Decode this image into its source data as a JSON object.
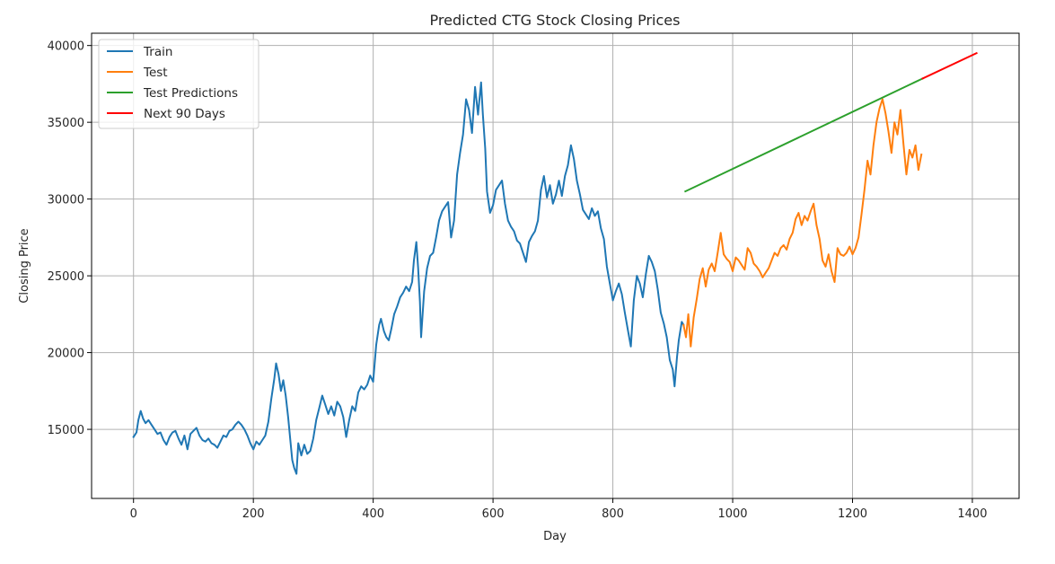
{
  "chart_data": {
    "type": "line",
    "title": "Predicted CTG Stock Closing Prices",
    "xlabel": "Day",
    "ylabel": "Closing Price",
    "xlim": [
      -70,
      1478
    ],
    "ylim": [
      10500,
      40800
    ],
    "xticks": [
      0,
      200,
      400,
      600,
      800,
      1000,
      1200,
      1400
    ],
    "xtick_labels": [
      "0",
      "200",
      "400",
      "600",
      "800",
      "1000",
      "1200",
      "1400"
    ],
    "yticks": [
      15000,
      20000,
      25000,
      30000,
      35000,
      40000
    ],
    "ytick_labels": [
      "15000",
      "20000",
      "25000",
      "30000",
      "35000",
      "40000"
    ],
    "grid": true,
    "legend_position": "top-left",
    "series": [
      {
        "name": "Train",
        "color": "#1f77b4",
        "points": [
          [
            0,
            14500
          ],
          [
            5,
            14800
          ],
          [
            8,
            15600
          ],
          [
            12,
            16200
          ],
          [
            16,
            15700
          ],
          [
            20,
            15400
          ],
          [
            25,
            15600
          ],
          [
            30,
            15300
          ],
          [
            35,
            15000
          ],
          [
            40,
            14700
          ],
          [
            45,
            14800
          ],
          [
            50,
            14300
          ],
          [
            55,
            14000
          ],
          [
            60,
            14500
          ],
          [
            65,
            14800
          ],
          [
            70,
            14900
          ],
          [
            75,
            14400
          ],
          [
            80,
            14000
          ],
          [
            85,
            14600
          ],
          [
            90,
            13700
          ],
          [
            95,
            14700
          ],
          [
            100,
            14900
          ],
          [
            105,
            15100
          ],
          [
            110,
            14600
          ],
          [
            115,
            14300
          ],
          [
            120,
            14200
          ],
          [
            125,
            14400
          ],
          [
            130,
            14100
          ],
          [
            135,
            14000
          ],
          [
            140,
            13800
          ],
          [
            145,
            14200
          ],
          [
            150,
            14600
          ],
          [
            155,
            14500
          ],
          [
            160,
            14900
          ],
          [
            165,
            15000
          ],
          [
            170,
            15300
          ],
          [
            175,
            15500
          ],
          [
            180,
            15300
          ],
          [
            185,
            15000
          ],
          [
            190,
            14600
          ],
          [
            195,
            14100
          ],
          [
            200,
            13700
          ],
          [
            205,
            14200
          ],
          [
            210,
            14000
          ],
          [
            215,
            14300
          ],
          [
            220,
            14600
          ],
          [
            225,
            15500
          ],
          [
            230,
            17000
          ],
          [
            235,
            18300
          ],
          [
            238,
            19300
          ],
          [
            242,
            18600
          ],
          [
            246,
            17500
          ],
          [
            250,
            18200
          ],
          [
            254,
            17200
          ],
          [
            258,
            15800
          ],
          [
            262,
            14200
          ],
          [
            265,
            13000
          ],
          [
            268,
            12500
          ],
          [
            272,
            12100
          ],
          [
            275,
            14100
          ],
          [
            280,
            13300
          ],
          [
            285,
            14000
          ],
          [
            290,
            13400
          ],
          [
            295,
            13600
          ],
          [
            300,
            14400
          ],
          [
            305,
            15600
          ],
          [
            310,
            16400
          ],
          [
            315,
            17200
          ],
          [
            320,
            16600
          ],
          [
            325,
            16000
          ],
          [
            330,
            16500
          ],
          [
            335,
            15900
          ],
          [
            340,
            16800
          ],
          [
            345,
            16500
          ],
          [
            350,
            15800
          ],
          [
            355,
            14500
          ],
          [
            360,
            15600
          ],
          [
            365,
            16500
          ],
          [
            370,
            16200
          ],
          [
            375,
            17400
          ],
          [
            380,
            17800
          ],
          [
            385,
            17600
          ],
          [
            390,
            17900
          ],
          [
            395,
            18500
          ],
          [
            400,
            18100
          ],
          [
            405,
            20500
          ],
          [
            410,
            21800
          ],
          [
            413,
            22200
          ],
          [
            418,
            21400
          ],
          [
            422,
            21000
          ],
          [
            426,
            20800
          ],
          [
            430,
            21500
          ],
          [
            435,
            22500
          ],
          [
            440,
            23000
          ],
          [
            445,
            23600
          ],
          [
            450,
            23900
          ],
          [
            455,
            24300
          ],
          [
            460,
            24000
          ],
          [
            465,
            24600
          ],
          [
            468,
            26000
          ],
          [
            472,
            27200
          ],
          [
            475,
            25500
          ],
          [
            478,
            23300
          ],
          [
            480,
            21000
          ],
          [
            485,
            24000
          ],
          [
            490,
            25500
          ],
          [
            495,
            26300
          ],
          [
            500,
            26500
          ],
          [
            505,
            27500
          ],
          [
            510,
            28600
          ],
          [
            515,
            29200
          ],
          [
            520,
            29500
          ],
          [
            525,
            29800
          ],
          [
            530,
            27500
          ],
          [
            535,
            28600
          ],
          [
            540,
            31600
          ],
          [
            545,
            33000
          ],
          [
            550,
            34200
          ],
          [
            555,
            36500
          ],
          [
            560,
            35800
          ],
          [
            565,
            34300
          ],
          [
            570,
            37300
          ],
          [
            575,
            35500
          ],
          [
            580,
            37600
          ],
          [
            583,
            35500
          ],
          [
            587,
            33300
          ],
          [
            590,
            30500
          ],
          [
            595,
            29100
          ],
          [
            600,
            29600
          ],
          [
            605,
            30600
          ],
          [
            610,
            30900
          ],
          [
            615,
            31200
          ],
          [
            620,
            29700
          ],
          [
            625,
            28600
          ],
          [
            630,
            28200
          ],
          [
            635,
            27900
          ],
          [
            640,
            27300
          ],
          [
            645,
            27100
          ],
          [
            650,
            26500
          ],
          [
            655,
            25900
          ],
          [
            660,
            27200
          ],
          [
            665,
            27600
          ],
          [
            670,
            27900
          ],
          [
            675,
            28600
          ],
          [
            680,
            30600
          ],
          [
            685,
            31500
          ],
          [
            690,
            30100
          ],
          [
            695,
            30900
          ],
          [
            700,
            29700
          ],
          [
            705,
            30300
          ],
          [
            710,
            31200
          ],
          [
            715,
            30200
          ],
          [
            720,
            31500
          ],
          [
            725,
            32200
          ],
          [
            730,
            33500
          ],
          [
            735,
            32600
          ],
          [
            740,
            31200
          ],
          [
            745,
            30300
          ],
          [
            750,
            29300
          ],
          [
            755,
            29000
          ],
          [
            760,
            28700
          ],
          [
            765,
            29400
          ],
          [
            770,
            28900
          ],
          [
            775,
            29200
          ],
          [
            780,
            28100
          ],
          [
            785,
            27400
          ],
          [
            790,
            25600
          ],
          [
            795,
            24500
          ],
          [
            800,
            23400
          ],
          [
            805,
            24000
          ],
          [
            810,
            24500
          ],
          [
            815,
            23800
          ],
          [
            820,
            22600
          ],
          [
            825,
            21500
          ],
          [
            830,
            20400
          ],
          [
            835,
            23400
          ],
          [
            840,
            25000
          ],
          [
            845,
            24500
          ],
          [
            850,
            23600
          ],
          [
            855,
            25100
          ],
          [
            860,
            26300
          ],
          [
            865,
            25900
          ],
          [
            870,
            25300
          ],
          [
            875,
            24100
          ],
          [
            880,
            22600
          ],
          [
            885,
            21900
          ],
          [
            890,
            21000
          ],
          [
            895,
            19500
          ],
          [
            900,
            18900
          ],
          [
            903,
            17800
          ],
          [
            907,
            19700
          ],
          [
            910,
            20800
          ],
          [
            915,
            22000
          ],
          [
            918,
            21800
          ]
        ]
      },
      {
        "name": "Test",
        "color": "#ff7f0e",
        "points": [
          [
            918,
            21800
          ],
          [
            922,
            21000
          ],
          [
            926,
            22500
          ],
          [
            930,
            20400
          ],
          [
            935,
            22300
          ],
          [
            940,
            23500
          ],
          [
            945,
            24800
          ],
          [
            950,
            25500
          ],
          [
            955,
            24300
          ],
          [
            960,
            25400
          ],
          [
            965,
            25800
          ],
          [
            970,
            25300
          ],
          [
            975,
            26500
          ],
          [
            980,
            27800
          ],
          [
            985,
            26400
          ],
          [
            990,
            26100
          ],
          [
            995,
            25900
          ],
          [
            1000,
            25300
          ],
          [
            1005,
            26200
          ],
          [
            1010,
            26000
          ],
          [
            1015,
            25700
          ],
          [
            1020,
            25400
          ],
          [
            1025,
            26800
          ],
          [
            1030,
            26500
          ],
          [
            1035,
            25800
          ],
          [
            1040,
            25600
          ],
          [
            1045,
            25300
          ],
          [
            1050,
            24900
          ],
          [
            1055,
            25200
          ],
          [
            1060,
            25500
          ],
          [
            1065,
            26000
          ],
          [
            1070,
            26500
          ],
          [
            1075,
            26300
          ],
          [
            1080,
            26800
          ],
          [
            1085,
            27000
          ],
          [
            1090,
            26700
          ],
          [
            1095,
            27400
          ],
          [
            1100,
            27800
          ],
          [
            1105,
            28700
          ],
          [
            1110,
            29100
          ],
          [
            1115,
            28300
          ],
          [
            1120,
            28900
          ],
          [
            1125,
            28600
          ],
          [
            1130,
            29200
          ],
          [
            1135,
            29700
          ],
          [
            1140,
            28300
          ],
          [
            1145,
            27400
          ],
          [
            1150,
            26000
          ],
          [
            1155,
            25600
          ],
          [
            1160,
            26400
          ],
          [
            1165,
            25300
          ],
          [
            1170,
            24600
          ],
          [
            1175,
            26800
          ],
          [
            1180,
            26400
          ],
          [
            1185,
            26300
          ],
          [
            1190,
            26500
          ],
          [
            1195,
            26900
          ],
          [
            1200,
            26400
          ],
          [
            1205,
            26800
          ],
          [
            1210,
            27500
          ],
          [
            1215,
            29000
          ],
          [
            1220,
            30600
          ],
          [
            1225,
            32500
          ],
          [
            1230,
            31600
          ],
          [
            1235,
            33500
          ],
          [
            1240,
            35000
          ],
          [
            1245,
            35900
          ],
          [
            1250,
            36500
          ],
          [
            1255,
            35600
          ],
          [
            1260,
            34400
          ],
          [
            1265,
            33000
          ],
          [
            1270,
            35000
          ],
          [
            1275,
            34200
          ],
          [
            1280,
            35800
          ],
          [
            1285,
            33600
          ],
          [
            1290,
            31600
          ],
          [
            1295,
            33200
          ],
          [
            1300,
            32700
          ],
          [
            1305,
            33500
          ],
          [
            1310,
            31900
          ],
          [
            1315,
            32900
          ]
        ]
      },
      {
        "name": "Test Predictions",
        "color": "#2ca02c",
        "points": [
          [
            921,
            30500
          ],
          [
            1317,
            37850
          ]
        ]
      },
      {
        "name": "Next 90 Days",
        "color": "#ff0000",
        "points": [
          [
            1317,
            37850
          ],
          [
            1407,
            39500
          ]
        ]
      }
    ]
  }
}
